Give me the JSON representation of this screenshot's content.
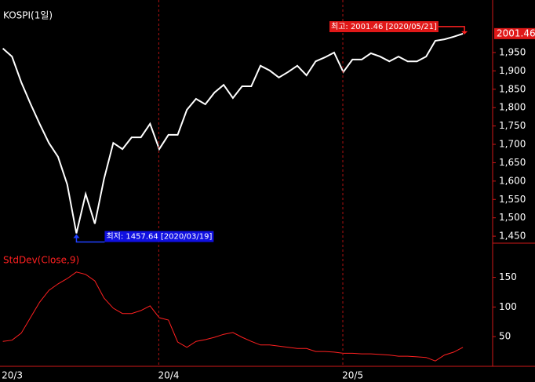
{
  "chart_data": [
    {
      "type": "line",
      "title": "KOSPI(1일)",
      "categories": [
        "20/3",
        null,
        null,
        null,
        null,
        null,
        null,
        null,
        null,
        null,
        null,
        null,
        null,
        null,
        null,
        null,
        null,
        "20/4",
        null,
        null,
        null,
        null,
        null,
        null,
        null,
        null,
        null,
        null,
        null,
        null,
        null,
        null,
        null,
        null,
        null,
        null,
        null,
        "20/5",
        null,
        null,
        null,
        null,
        null,
        null,
        null,
        null,
        null,
        null,
        null,
        null,
        null
      ],
      "series": [
        {
          "name": "KOSPI",
          "color": "#ffffff",
          "values": [
            1961,
            1939,
            1869,
            1811,
            1756,
            1704,
            1666,
            1591,
            1457.64,
            1565,
            1484,
            1606,
            1704,
            1687,
            1719,
            1719,
            1756,
            1687,
            1726,
            1726,
            1794,
            1824,
            1809,
            1841,
            1862,
            1826,
            1858,
            1858,
            1914,
            1901,
            1882,
            1897,
            1914,
            1888,
            1926,
            1937,
            1950,
            1897,
            1931,
            1931,
            1948,
            1939,
            1926,
            1939,
            1926,
            1926,
            1939,
            1982,
            1986,
            1993,
            2001.46
          ]
        }
      ],
      "annotations": {
        "high": "최고: 2001.46 [2020/05/21]",
        "low": "최저: 1457.64 [2020/03/19]"
      },
      "ylim": [
        1431,
        2093
      ],
      "yticks": [
        {
          "value": 1450,
          "label": "1,450"
        },
        {
          "value": 1500,
          "label": "1,500"
        },
        {
          "value": 1550,
          "label": "1,550"
        },
        {
          "value": 1600,
          "label": "1,600"
        },
        {
          "value": 1650,
          "label": "1,650"
        },
        {
          "value": 1700,
          "label": "1,700"
        },
        {
          "value": 1750,
          "label": "1,750"
        },
        {
          "value": 1800,
          "label": "1,800"
        },
        {
          "value": 1850,
          "label": "1,850"
        },
        {
          "value": 1900,
          "label": "1,900"
        },
        {
          "value": 1950,
          "label": "1,950"
        }
      ],
      "grid": true
    },
    {
      "type": "line",
      "title": "StdDev(Close,9)",
      "series": [
        {
          "name": "StdDev",
          "color": "#ff2020",
          "values": [
            42,
            44,
            56,
            82,
            108,
            128,
            139,
            148,
            159,
            155,
            144,
            115,
            98,
            89,
            89,
            94,
            102,
            82,
            78,
            41,
            32,
            42,
            45,
            49,
            54,
            57,
            49,
            42,
            36,
            36,
            34,
            32,
            30,
            30,
            25,
            25,
            24,
            22,
            22,
            21,
            21,
            20,
            19,
            17,
            17,
            16,
            15,
            9,
            19,
            24,
            32
          ]
        }
      ],
      "ylim": [
        0,
        205
      ],
      "yticks": [
        50,
        100,
        150
      ]
    }
  ]
}
